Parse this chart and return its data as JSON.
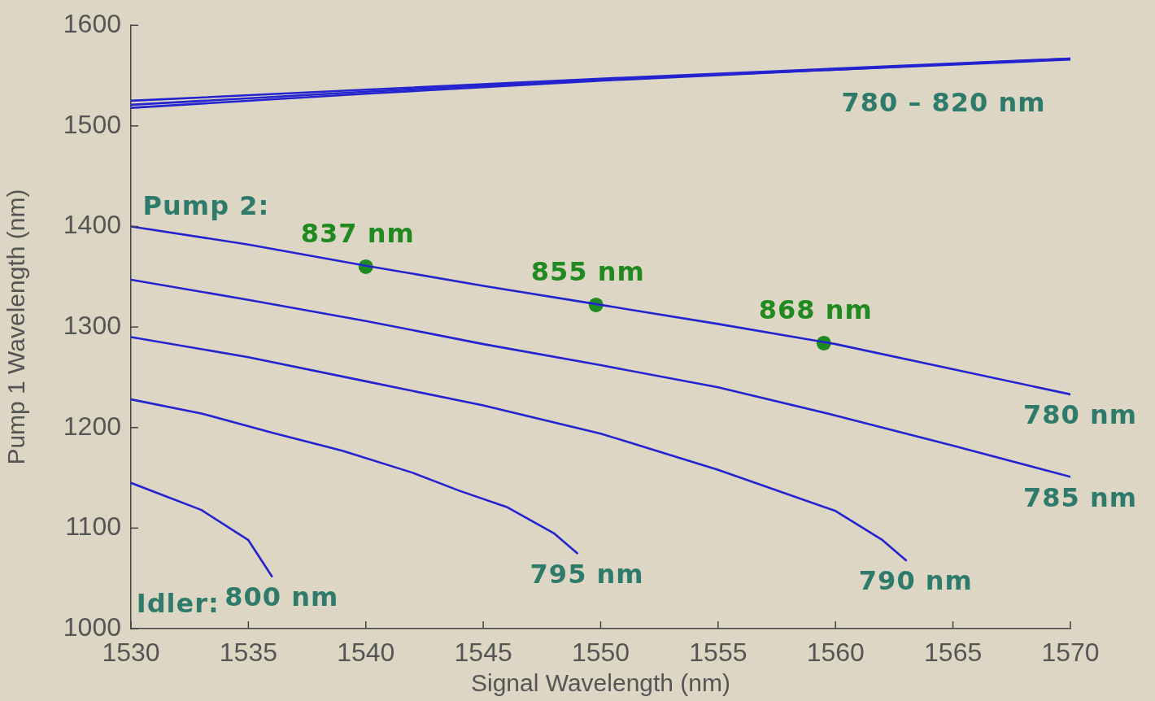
{
  "chart_data": {
    "type": "line",
    "xlabel": "Signal Wavelength (nm)",
    "ylabel": "Pump 1 Wavelength (nm)",
    "xlim": [
      1530,
      1570
    ],
    "xticks": [
      1530,
      1535,
      1540,
      1545,
      1550,
      1555,
      1560,
      1565,
      1570
    ],
    "ylim": [
      1000,
      1600
    ],
    "yticks": [
      1000,
      1100,
      1200,
      1300,
      1400,
      1500,
      1600
    ],
    "grid": false,
    "legend": false,
    "marker": "none",
    "series": [
      {
        "color": "#2323cf",
        "x": [
          1530,
          1540,
          1550,
          1560,
          1570
        ],
        "values": [
          1525,
          1536,
          1547,
          1557,
          1567
        ]
      },
      {
        "color": "#2323cf",
        "x": [
          1530,
          1540,
          1550,
          1560,
          1570
        ],
        "values": [
          1521,
          1534,
          1546,
          1556,
          1567
        ]
      },
      {
        "color": "#2323cf",
        "x": [
          1530,
          1540,
          1550,
          1560,
          1570
        ],
        "values": [
          1518,
          1532,
          1545,
          1556,
          1566
        ]
      },
      {
        "name": "780 nm",
        "color": "#2323cf",
        "x": [
          1530,
          1535,
          1540,
          1545,
          1550,
          1555,
          1560,
          1565,
          1570
        ],
        "values": [
          1400,
          1382,
          1361,
          1341,
          1322,
          1303,
          1283,
          1258,
          1233
        ]
      },
      {
        "name": "785 nm",
        "color": "#2323cf",
        "x": [
          1530,
          1535,
          1540,
          1545,
          1550,
          1555,
          1560,
          1565,
          1570
        ],
        "values": [
          1347,
          1327,
          1306,
          1283,
          1262,
          1240,
          1212,
          1182,
          1151
        ]
      },
      {
        "name": "790 nm",
        "color": "#2323cf",
        "x": [
          1530,
          1535,
          1540,
          1545,
          1550,
          1555,
          1560,
          1562,
          1563
        ],
        "values": [
          1290,
          1270,
          1246,
          1222,
          1194,
          1158,
          1117,
          1088,
          1068
        ]
      },
      {
        "name": "795 nm",
        "color": "#2323cf",
        "x": [
          1530,
          1533,
          1536,
          1539,
          1542,
          1544,
          1546,
          1548,
          1549
        ],
        "values": [
          1228,
          1214,
          1195,
          1177,
          1155,
          1137,
          1121,
          1095,
          1075
        ]
      },
      {
        "name": "800 nm",
        "color": "#2323cf",
        "x": [
          1530,
          1533,
          1535,
          1536
        ],
        "values": [
          1145,
          1118,
          1088,
          1052
        ]
      },
      {
        "type": "scatter",
        "color": "#1f8a1f",
        "marker": "circle",
        "x": [
          1540,
          1549.8,
          1559.5
        ],
        "values": [
          1360,
          1322,
          1284
        ]
      }
    ],
    "annotations": [
      "780 – 820 nm",
      "Pump 2:",
      "Idler:",
      {
        "text": "837 nm",
        "x": 1540,
        "y": 1360
      },
      {
        "text": "855 nm",
        "x": 1549.8,
        "y": 1322
      },
      {
        "text": "868 nm",
        "x": 1559.5,
        "y": 1284
      }
    ]
  }
}
